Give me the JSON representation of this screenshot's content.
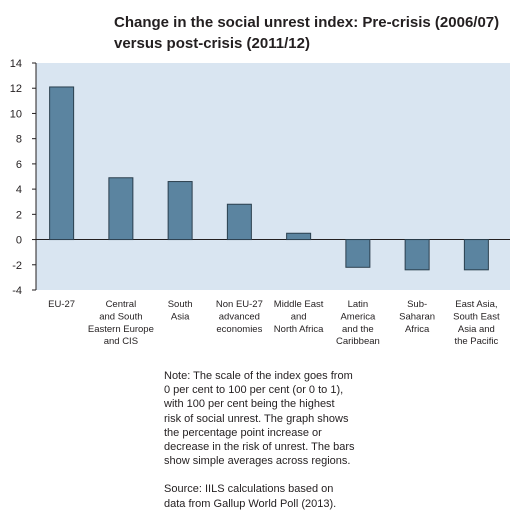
{
  "chart_data": {
    "type": "bar",
    "title_lines": [
      "Change in the social unrest index: Pre-crisis (2006/07)",
      "versus post-crisis (2011/12)"
    ],
    "categories": [
      [
        "EU-27"
      ],
      [
        "Central",
        "and South",
        "Eastern Europe",
        "and CIS"
      ],
      [
        "South",
        "Asia"
      ],
      [
        "Non EU-27",
        "advanced",
        "economies"
      ],
      [
        "Middle East",
        "and",
        "North Africa"
      ],
      [
        "Latin",
        "America",
        "and the",
        "Caribbean"
      ],
      [
        "Sub-",
        "Saharan",
        "Africa"
      ],
      [
        "East Asia,",
        "South East",
        "Asia and",
        "the Pacific"
      ]
    ],
    "values": [
      12.1,
      4.9,
      4.6,
      2.8,
      0.5,
      -2.2,
      -2.4,
      -2.4
    ],
    "ylim": [
      -4,
      14
    ],
    "yticks": [
      "14",
      "12",
      "10",
      "8",
      "6",
      "4",
      "2",
      "0",
      "-2",
      "-4"
    ],
    "ytick_values": [
      14,
      12,
      10,
      8,
      6,
      4,
      2,
      0,
      -2,
      -4
    ],
    "grid": false,
    "colors": {
      "plot_background": "#d9e5f1",
      "bar_fill": "#5b84a0",
      "bar_stroke": "#2b3f4e",
      "axis": "#231f20"
    }
  },
  "note": "Note: The scale of the index goes from\n0 per cent to 100 per cent (or 0 to 1),\nwith 100 per cent being the highest\nrisk of social unrest. The graph shows\nthe percentage point increase or\ndecrease in the risk of unrest. The bars\nshow simple averages across regions.",
  "source": "Source: IILS calculations based on\ndata from Gallup World Poll (2013)."
}
